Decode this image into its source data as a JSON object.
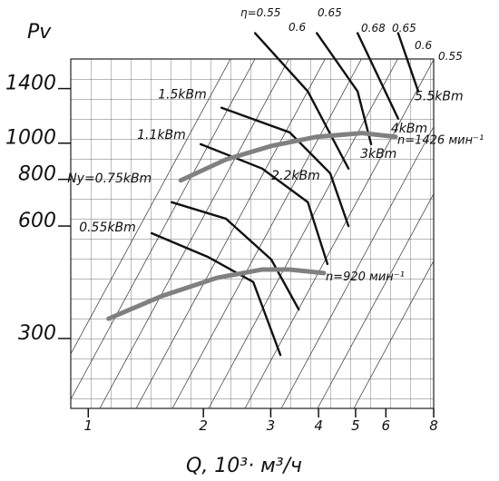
{
  "chart_data": {
    "type": "line",
    "y_label": "Pv",
    "x_label": "Q, 10³· м³/ч",
    "log_x": true,
    "log_y": true,
    "grid": true,
    "xlim": [
      0.9,
      8
    ],
    "ylim": [
      195,
      1680
    ],
    "xticks": [
      1,
      2,
      3,
      4,
      5,
      6,
      8
    ],
    "yticks": [
      300,
      600,
      800,
      1000,
      1400
    ],
    "series": [
      {
        "name": "n=1426 мин⁻¹",
        "color": "#808080",
        "x": [
          1.745,
          2.29,
          3.01,
          3.96,
          5.2,
          6.36
        ],
        "values": [
          795,
          904,
          983,
          1040,
          1064,
          1040
        ]
      },
      {
        "name": "n=920 мин⁻¹",
        "color": "#808080",
        "x": [
          1.13,
          1.56,
          2.17,
          2.85,
          3.36,
          4.13
        ],
        "values": [
          339,
          390,
          436,
          459,
          459,
          449
        ]
      }
    ],
    "power_curves": [
      {
        "name": "0.55kBm",
        "color": "#111111",
        "x": [
          1.465,
          2.055,
          2.7,
          3.18
        ],
        "values": [
          574,
          496,
          425,
          271
        ]
      },
      {
        "name": "Ny=0.75kBm",
        "color": "#111111",
        "x": [
          1.652,
          2.29,
          3.01,
          3.55
        ],
        "values": [
          695,
          628,
          488,
          359
        ]
      },
      {
        "name": "1.1kBm",
        "color": "#111111",
        "x": [
          1.967,
          2.85,
          3.75,
          4.22
        ],
        "values": [
          994,
          855,
          695,
          475
        ]
      },
      {
        "name": "1.5kBm",
        "color": "#111111",
        "x": [
          2.23,
          3.36,
          4.29,
          4.79
        ],
        "values": [
          1244,
          1069,
          831,
          600
        ]
      },
      {
        "name": "2.2kBm",
        "color": "#111111",
        "x": [
          2.73,
          3.75,
          4.79
        ],
        "values": [
          1970,
          1376,
          855
        ]
      },
      {
        "name": "3kBm",
        "color": "#111111",
        "x": [
          3.96,
          5.06,
          5.49
        ],
        "values": [
          1970,
          1376,
          994
        ]
      },
      {
        "name": "4kBm",
        "color": "#111111",
        "x": [
          5.06,
          6.46
        ],
        "values": [
          1970,
          1163
        ]
      },
      {
        "name": "5.5kBm",
        "color": "#111111",
        "x": [
          6.46,
          7.29
        ],
        "values": [
          1970,
          1376
        ]
      }
    ],
    "efficiency_labels": [
      "η=0.55",
      "0.6",
      "0.65",
      "0.68",
      "0.65",
      "0.6",
      "0.55"
    ]
  }
}
